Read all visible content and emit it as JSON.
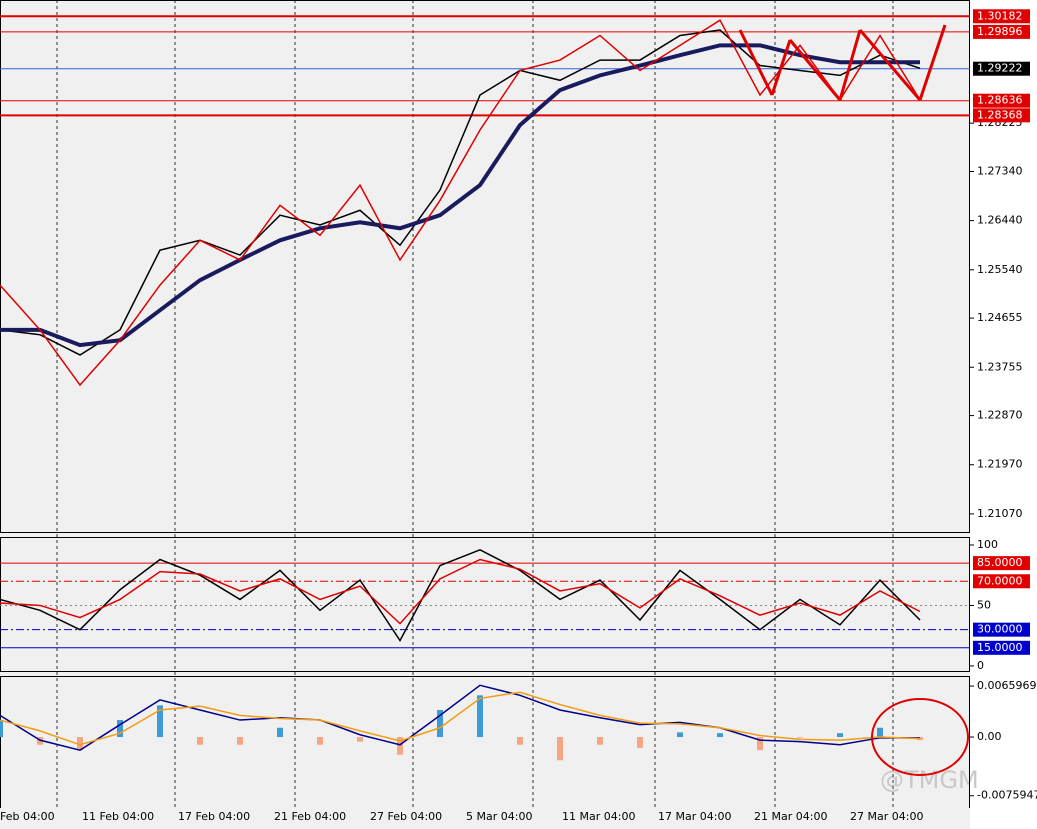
{
  "chart_data": [
    {
      "type": "line",
      "ylim": [
        1.2072,
        1.3048
      ],
      "yticks": [
        {
          "value": 1.28225,
          "label": "1.28225"
        },
        {
          "value": 1.2734,
          "label": "1.27340"
        },
        {
          "value": 1.2644,
          "label": "1.26440"
        },
        {
          "value": 1.2554,
          "label": "1.25540"
        },
        {
          "value": 1.24655,
          "label": "1.24655"
        },
        {
          "value": 1.23755,
          "label": "1.23755"
        },
        {
          "value": 1.2287,
          "label": "1.22870"
        },
        {
          "value": 1.2197,
          "label": "1.21970"
        },
        {
          "value": 1.2107,
          "label": "1.21070"
        }
      ],
      "levels": [
        {
          "value": 1.30182,
          "label": "1.30182",
          "color": "#e00000"
        },
        {
          "value": 1.29896,
          "label": "1.29896",
          "color": "#e00000"
        },
        {
          "value": 1.29222,
          "label": "1.29222",
          "color": "#000000"
        },
        {
          "value": 1.28636,
          "label": "1.28636",
          "color": "#e00000"
        },
        {
          "value": 1.28368,
          "label": "1.28368",
          "color": "#e00000"
        }
      ],
      "series": [
        {
          "kind": "line",
          "color": "#000000",
          "values": [
            1.2444,
            1.2435,
            1.2398,
            1.2444,
            1.259,
            1.2608,
            1.2581,
            1.2654,
            1.2636,
            1.2663,
            1.2599,
            1.27,
            1.2874,
            1.2919,
            1.2901,
            1.2938,
            1.2938,
            1.2983,
            1.2993,
            1.2928,
            1.2919,
            1.291,
            1.2947,
            1.2923
          ]
        },
        {
          "kind": "line",
          "color": "#1a1a5e",
          "values": [
            1.2444,
            1.2444,
            1.2416,
            1.2425,
            1.248,
            1.2535,
            1.2572,
            1.2608,
            1.263,
            1.2641,
            1.263,
            1.2654,
            1.2709,
            1.2819,
            1.2883,
            1.291,
            1.2928,
            1.2947,
            1.2965,
            1.2965,
            1.2947,
            1.2934,
            1.2934,
            1.2934
          ]
        },
        {
          "kind": "line",
          "color": "#e00000",
          "values": [
            1.2526,
            1.2444,
            1.2343,
            1.2425,
            1.2526,
            1.2608,
            1.2572,
            1.2672,
            1.2617,
            1.2709,
            1.2572,
            1.2681,
            1.281,
            1.2919,
            1.2938,
            1.2983,
            1.2919,
            1.2965,
            1.3011,
            1.2874,
            1.2965,
            1.2865,
            1.2983,
            1.2865
          ]
        }
      ]
    },
    {
      "type": "line",
      "ylim": [
        -5,
        106.6
      ],
      "yticks": [
        100,
        50,
        0
      ],
      "levels": [
        {
          "value": 85,
          "label": "85.0000",
          "color": "#e00000"
        },
        {
          "value": 70,
          "label": "70.0000",
          "color": "#e00000"
        },
        {
          "value": 30,
          "label": "30.0000",
          "color": "#0000cc"
        },
        {
          "value": 15,
          "label": "15.0000",
          "color": "#0000cc"
        }
      ],
      "series": [
        {
          "kind": "line",
          "color": "#000000",
          "values": [
            55,
            46,
            30,
            63,
            88,
            75,
            55,
            79,
            46,
            71,
            21,
            83,
            96,
            79,
            55,
            71,
            38,
            79,
            55,
            30,
            55,
            34,
            71,
            38
          ]
        },
        {
          "kind": "line",
          "color": "#e00000",
          "values": [
            52,
            50,
            40,
            55,
            78,
            76,
            62,
            72,
            55,
            66,
            35,
            72,
            88,
            80,
            62,
            68,
            48,
            72,
            58,
            42,
            52,
            42,
            62,
            45
          ]
        }
      ]
    },
    {
      "type": "combo",
      "ylim": [
        -0.0119,
        0.0079
      ],
      "yticks": [
        0.0065969,
        {
          "value": 0,
          "label": "0.00"
        },
        -0.0075947
      ],
      "series": [
        {
          "kind": "bar",
          "color": "#3c9ad8",
          "negative_color": "#f4a582",
          "values": [
            0.0022,
            -0.001,
            -0.0017,
            0.0022,
            0.0041,
            -0.001,
            -0.001,
            0.0012,
            -0.001,
            -0.0006,
            -0.0023,
            0.0035,
            0.0054,
            -0.001,
            -0.003,
            -0.001,
            -0.0014,
            0.0006,
            0.0005,
            -0.0017,
            -0.0001,
            0.0005,
            0.0012,
            -0.0004
          ]
        },
        {
          "kind": "line",
          "color": "#00008b",
          "values": [
            0.0028,
            -0.0004,
            -0.0017,
            0.0016,
            0.0048,
            0.0035,
            0.0022,
            0.0025,
            0.0022,
            0.0003,
            -0.001,
            0.0028,
            0.0067,
            0.0054,
            0.0035,
            0.0025,
            0.0016,
            0.0019,
            0.0012,
            -0.0004,
            -0.0006,
            -0.001,
            -0.0001,
            -0.0001
          ]
        },
        {
          "kind": "line",
          "color": "#f39c12",
          "values": [
            0.0022,
            0.0008,
            -0.001,
            0.0005,
            0.0035,
            0.004,
            0.0028,
            0.0024,
            0.0022,
            0.0008,
            -0.0005,
            0.0012,
            0.005,
            0.0058,
            0.0042,
            0.0028,
            0.0018,
            0.0017,
            0.0012,
            0.0002,
            -0.0003,
            -0.0004,
            0.0,
            -0.0002
          ]
        }
      ]
    }
  ],
  "time_axis": {
    "labels": [
      "Feb 04:00",
      "11 Feb 04:00",
      "17 Feb 04:00",
      "21 Feb 04:00",
      "27 Feb 04:00",
      "5 Mar 04:00",
      "11 Mar 04:00",
      "17 Mar 04:00",
      "21 Mar 04:00",
      "27 Mar 04:00"
    ]
  },
  "watermark": "@TMGM"
}
